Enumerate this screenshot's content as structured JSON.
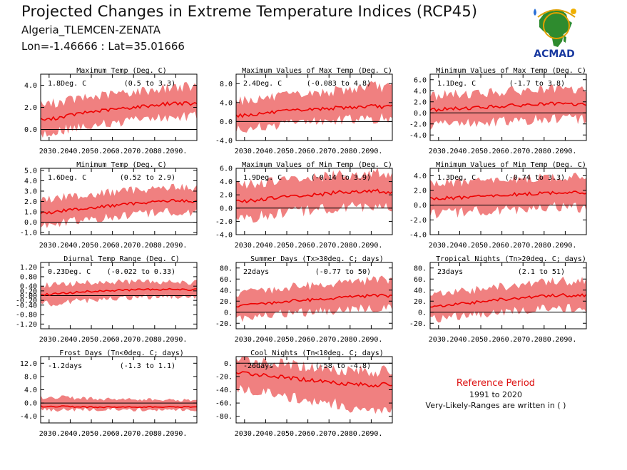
{
  "header": {
    "title": "Projected Changes in Extreme Temperature Indices (RCP45)",
    "location": "Algeria_TLEMCEN-ZENATA",
    "coords": "Lon=-1.46666 : Lat=35.01666"
  },
  "logo": {
    "text": "ACMAD",
    "icon": "africa-logo-icon"
  },
  "reference": {
    "title": "Reference Period",
    "years": "1991 to 2020",
    "note": "Very-Likely-Ranges are written in ( )"
  },
  "colors": {
    "band": "#f08080",
    "line": "#ee0000",
    "zero": "#000000"
  },
  "chart_data": [
    {
      "type": "area",
      "title": "Maximum Temp (Deg. C)",
      "summary": "1.8Deg. C",
      "range": "(0.5 to 3.3)",
      "ylim": [
        -1.0,
        5.0
      ],
      "yticks": [
        0.0,
        2.0,
        4.0
      ],
      "ytick_labels": [
        "0.0",
        "2.0",
        "4.0"
      ],
      "x": [
        2030,
        2040,
        2050,
        2060,
        2070,
        2080,
        2090,
        2098
      ],
      "mean": [
        0.9,
        1.3,
        1.6,
        1.8,
        2.0,
        2.2,
        2.4,
        2.3
      ],
      "low": [
        -0.3,
        0.1,
        0.4,
        0.6,
        0.8,
        1.0,
        1.2,
        1.2
      ],
      "high": [
        2.3,
        2.7,
        2.9,
        3.2,
        3.4,
        3.6,
        3.9,
        3.8
      ]
    },
    {
      "type": "area",
      "title": "Maximum Values of Max Temp (Deg. C)",
      "summary": "2.4Deg. C",
      "range": "(-0.083 to 4.8)",
      "ylim": [
        -4.0,
        10.0
      ],
      "yticks": [
        -4.0,
        0.0,
        4.0,
        8.0
      ],
      "ytick_labels": [
        "-4.0",
        "0.0",
        "4.0",
        "8.0"
      ],
      "x": [
        2030,
        2040,
        2050,
        2060,
        2070,
        2080,
        2090,
        2098
      ],
      "mean": [
        1.3,
        1.8,
        2.2,
        2.5,
        2.8,
        3.0,
        3.2,
        3.1
      ],
      "low": [
        -1.5,
        -1.0,
        -0.5,
        0.0,
        0.3,
        0.5,
        0.7,
        0.7
      ],
      "high": [
        4.5,
        5.0,
        5.4,
        5.8,
        6.3,
        6.8,
        7.5,
        7.2
      ]
    },
    {
      "type": "area",
      "title": "Minimum Values of Max Temp (Deg. C)",
      "summary": "1.1Deg. C",
      "range": "(-1.7 to 3.8)",
      "ylim": [
        -5.0,
        7.0
      ],
      "yticks": [
        -4.0,
        -2.0,
        0.0,
        2.0,
        4.0,
        6.0
      ],
      "ytick_labels": [
        "-4.0",
        "-2.0",
        "0.0",
        "2.0",
        "4.0",
        "6.0"
      ],
      "x": [
        2030,
        2040,
        2050,
        2060,
        2070,
        2080,
        2090,
        2098
      ],
      "mean": [
        0.6,
        0.8,
        1.0,
        1.2,
        1.4,
        1.6,
        1.6,
        1.5
      ],
      "low": [
        -2.2,
        -1.9,
        -1.7,
        -1.5,
        -1.3,
        -1.1,
        -1.1,
        -1.2
      ],
      "high": [
        3.2,
        3.4,
        3.6,
        3.8,
        4.0,
        4.2,
        4.2,
        4.1
      ]
    },
    {
      "type": "area",
      "title": "Minimum Temp (Deg. C)",
      "summary": "1.6Deg. C",
      "range": "(0.52 to 2.9)",
      "ylim": [
        -1.2,
        5.2
      ],
      "yticks": [
        -1.0,
        0.0,
        1.0,
        2.0,
        3.0,
        4.0,
        5.0
      ],
      "ytick_labels": [
        "-1.0",
        "0.0",
        "1.0",
        "2.0",
        "3.0",
        "4.0",
        "5.0"
      ],
      "x": [
        2030,
        2040,
        2050,
        2060,
        2070,
        2080,
        2090,
        2098
      ],
      "mean": [
        0.9,
        1.2,
        1.4,
        1.6,
        1.8,
        2.0,
        2.1,
        2.0
      ],
      "low": [
        -0.2,
        0.1,
        0.3,
        0.5,
        0.7,
        0.9,
        1.0,
        0.9
      ],
      "high": [
        2.2,
        2.5,
        2.7,
        2.9,
        3.1,
        3.3,
        3.4,
        3.3
      ]
    },
    {
      "type": "area",
      "title": "Maximum Values of Min Temp (Deg. C)",
      "summary": "1.9Deg. C",
      "range": "(-0.14 to 3.9)",
      "ylim": [
        -4.0,
        6.0
      ],
      "yticks": [
        -4.0,
        -2.0,
        0.0,
        2.0,
        4.0,
        6.0
      ],
      "ytick_labels": [
        "-4.0",
        "-2.0",
        "0.0",
        "2.0",
        "4.0",
        "6.0"
      ],
      "x": [
        2030,
        2040,
        2050,
        2060,
        2070,
        2080,
        2090,
        2098
      ],
      "mean": [
        1.0,
        1.4,
        1.7,
        1.9,
        2.2,
        2.5,
        2.6,
        2.4
      ],
      "low": [
        -1.5,
        -1.1,
        -0.7,
        -0.4,
        -0.1,
        0.2,
        0.3,
        0.2
      ],
      "high": [
        3.5,
        3.9,
        4.2,
        4.5,
        4.8,
        5.1,
        5.3,
        5.2
      ]
    },
    {
      "type": "area",
      "title": "Minimum Values of Min Temp (Deg. C)",
      "summary": "1.3Deg. C",
      "range": "(-0.74 to 3.3)",
      "ylim": [
        -4.0,
        5.0
      ],
      "yticks": [
        -4.0,
        -2.0,
        0.0,
        2.0,
        4.0
      ],
      "ytick_labels": [
        "-4.0",
        "-2.0",
        "0.0",
        "2.0",
        "4.0"
      ],
      "x": [
        2030,
        2040,
        2050,
        2060,
        2070,
        2080,
        2090,
        2098
      ],
      "mean": [
        0.9,
        1.0,
        1.2,
        1.3,
        1.5,
        1.6,
        1.8,
        1.6
      ],
      "low": [
        -1.2,
        -1.0,
        -0.8,
        -0.7,
        -0.5,
        -0.3,
        -0.2,
        -0.4
      ],
      "high": [
        3.0,
        3.1,
        3.3,
        3.4,
        3.6,
        3.7,
        3.9,
        3.7
      ]
    },
    {
      "type": "area",
      "title": "Diurnal Temp Range (Deg. C)",
      "summary": "0.23Deg. C",
      "range": "(-0.022 to 0.33)",
      "ylim": [
        -1.4,
        1.4
      ],
      "yticks": [
        -1.2,
        -0.8,
        -0.4,
        -0.2,
        0.0,
        0.2,
        0.4,
        0.8,
        1.2
      ],
      "ytick_labels": [
        "-1.20",
        "-0.80",
        "-0.40",
        "-0.20",
        "0.00",
        "0.20",
        "0.40",
        "0.80",
        "1.20"
      ],
      "x": [
        2030,
        2040,
        2050,
        2060,
        2070,
        2080,
        2090,
        2098
      ],
      "mean": [
        0.05,
        0.12,
        0.18,
        0.22,
        0.24,
        0.26,
        0.27,
        0.25
      ],
      "low": [
        -0.35,
        -0.25,
        -0.18,
        -0.12,
        -0.08,
        -0.05,
        -0.03,
        -0.05
      ],
      "high": [
        0.45,
        0.5,
        0.55,
        0.58,
        0.58,
        0.58,
        0.58,
        0.56
      ]
    },
    {
      "type": "area",
      "title": "Summer Days (Tx>30deg. C; days)",
      "summary": "22days",
      "range": "(-0.77 to 50)",
      "ylim": [
        -30.0,
        90.0
      ],
      "yticks": [
        -20.0,
        0.0,
        20.0,
        40.0,
        60.0,
        80.0
      ],
      "ytick_labels": [
        "-20.",
        "0.",
        "20.",
        "40.",
        "60.",
        "80."
      ],
      "x": [
        2030,
        2040,
        2050,
        2060,
        2070,
        2080,
        2090,
        2098
      ],
      "mean": [
        12,
        16,
        20,
        22,
        25,
        28,
        30,
        29
      ],
      "low": [
        -10,
        -5,
        -2,
        0,
        3,
        5,
        7,
        6
      ],
      "high": [
        35,
        40,
        45,
        48,
        52,
        55,
        58,
        57
      ]
    },
    {
      "type": "area",
      "title": "Tropical Nights (Tn>20deg. C; days)",
      "summary": "23days",
      "range": "(2.1 to 51)",
      "ylim": [
        -30.0,
        90.0
      ],
      "yticks": [
        -20.0,
        0.0,
        20.0,
        40.0,
        60.0,
        80.0
      ],
      "ytick_labels": [
        "-20.",
        "0.",
        "20.",
        "40.",
        "60.",
        "80."
      ],
      "x": [
        2030,
        2040,
        2050,
        2060,
        2070,
        2080,
        2090,
        2098
      ],
      "mean": [
        10,
        15,
        19,
        23,
        26,
        29,
        31,
        30
      ],
      "low": [
        -12,
        -7,
        -3,
        0,
        3,
        6,
        8,
        7
      ],
      "high": [
        32,
        37,
        42,
        46,
        50,
        54,
        57,
        56
      ]
    },
    {
      "type": "area",
      "title": "Frost Days (Tn<0deg. C; days)",
      "summary": "-1.2days",
      "range": "(-1.3 to 1.1)",
      "ylim": [
        -6.0,
        14.0
      ],
      "yticks": [
        -4.0,
        0.0,
        4.0,
        8.0,
        12.0
      ],
      "ytick_labels": [
        "-4.0",
        "0.0",
        "4.0",
        "8.0",
        "12.0"
      ],
      "x": [
        2030,
        2040,
        2050,
        2060,
        2070,
        2080,
        2090,
        2098
      ],
      "mean": [
        -1.0,
        -1.1,
        -1.2,
        -1.2,
        -1.2,
        -1.2,
        -1.2,
        -1.2
      ],
      "low": [
        -2.0,
        -2.0,
        -2.0,
        -2.0,
        -2.0,
        -2.0,
        -2.0,
        -2.0
      ],
      "high": [
        1.8,
        1.6,
        1.4,
        1.2,
        1.2,
        1.0,
        0.8,
        0.8
      ]
    },
    {
      "type": "area",
      "title": "Cool Nights (Tn<10deg. C; days)",
      "summary": "-26days",
      "range": "(-58 to -4.8)",
      "ylim": [
        -90.0,
        10.0
      ],
      "yticks": [
        -80.0,
        -60.0,
        -40.0,
        -20.0,
        0.0
      ],
      "ytick_labels": [
        "-80.",
        "-60.",
        "-40.",
        "-20.",
        "0."
      ],
      "x": [
        2030,
        2040,
        2050,
        2060,
        2070,
        2080,
        2090,
        2098
      ],
      "mean": [
        -15,
        -18,
        -22,
        -25,
        -28,
        -31,
        -33,
        -32
      ],
      "low": [
        -40,
        -45,
        -50,
        -55,
        -60,
        -65,
        -68,
        -66
      ],
      "high": [
        5,
        2,
        -2,
        -5,
        -8,
        -10,
        -12,
        -12
      ]
    }
  ],
  "xticks": [
    "2030.",
    "2040.",
    "2050.",
    "2060.",
    "2070.",
    "2080.",
    "2090."
  ],
  "xtick_values": [
    2030,
    2040,
    2050,
    2060,
    2070,
    2080,
    2090
  ],
  "xlim": [
    2026,
    2100
  ]
}
